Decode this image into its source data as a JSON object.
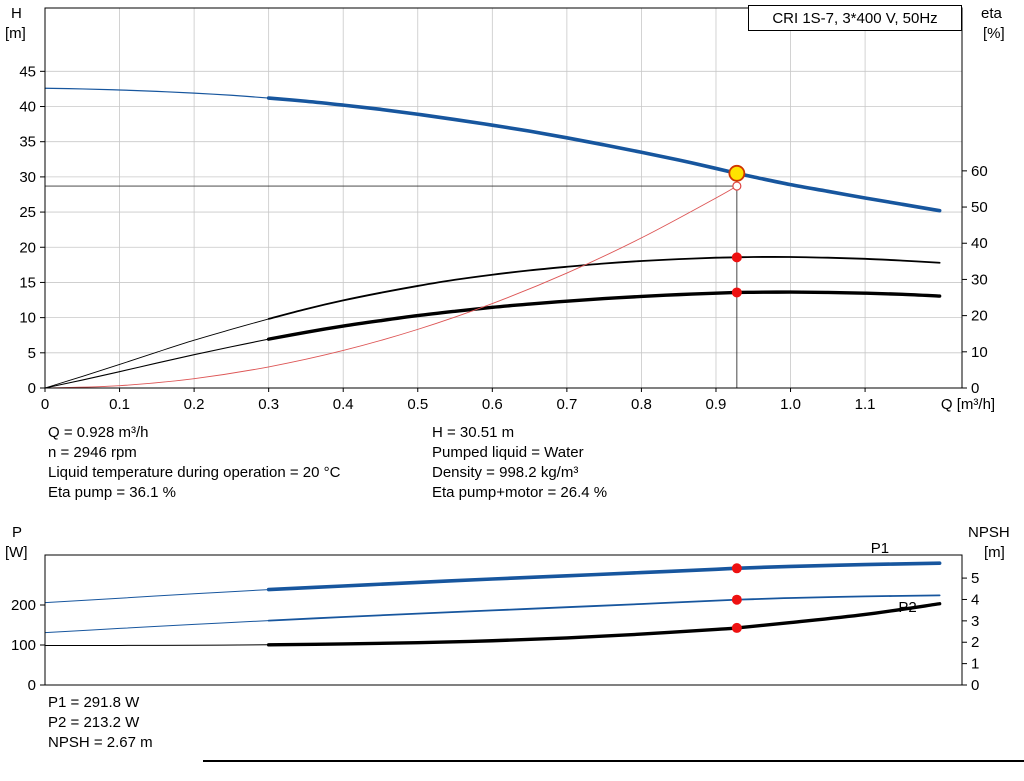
{
  "chart_data": [
    {
      "type": "line",
      "title": "CRI 1S-7, 3*400 V, 50Hz",
      "grid": true,
      "grid_color": "#c8c8c8",
      "x": {
        "label": "Q [m³/h]",
        "min": 0,
        "max": 1.23,
        "ticks": [
          [
            0,
            "0"
          ],
          [
            0.1,
            "0.1"
          ],
          [
            0.2,
            "0.2"
          ],
          [
            0.3,
            "0.3"
          ],
          [
            0.4,
            "0.4"
          ],
          [
            0.5,
            "0.5"
          ],
          [
            0.6,
            "0.6"
          ],
          [
            0.7,
            "0.7"
          ],
          [
            0.8,
            "0.8"
          ],
          [
            0.9,
            "0.9"
          ],
          [
            1.0,
            "1.0"
          ],
          [
            1.1,
            "1.1"
          ]
        ]
      },
      "y_left": {
        "name": "H",
        "unit": "[m]",
        "min": 0,
        "max": 54,
        "ticks": [
          [
            0,
            "0"
          ],
          [
            5,
            "5"
          ],
          [
            10,
            "10"
          ],
          [
            15,
            "15"
          ],
          [
            20,
            "20"
          ],
          [
            25,
            "25"
          ],
          [
            30,
            "30"
          ],
          [
            35,
            "35"
          ],
          [
            40,
            "40"
          ],
          [
            45,
            "45"
          ]
        ]
      },
      "y_right": {
        "name": "eta",
        "unit": "[%]",
        "min": 0,
        "max": 105,
        "ticks": [
          [
            0,
            "0"
          ],
          [
            10,
            "10"
          ],
          [
            20,
            "20"
          ],
          [
            30,
            "30"
          ],
          [
            40,
            "40"
          ],
          [
            50,
            "50"
          ],
          [
            60,
            "60"
          ]
        ]
      },
      "series": [
        {
          "name": "pump-curve",
          "axis": "left",
          "color": "#17569e",
          "split": 0.3,
          "w_thin": 1.2,
          "w_thick": 3.6,
          "points": [
            [
              0,
              42.6
            ],
            [
              0.05,
              42.5
            ],
            [
              0.1,
              42.35
            ],
            [
              0.15,
              42.15
            ],
            [
              0.2,
              41.9
            ],
            [
              0.25,
              41.6
            ],
            [
              0.3,
              41.2
            ],
            [
              0.35,
              40.75
            ],
            [
              0.4,
              40.2
            ],
            [
              0.45,
              39.6
            ],
            [
              0.5,
              38.9
            ],
            [
              0.55,
              38.15
            ],
            [
              0.6,
              37.35
            ],
            [
              0.65,
              36.5
            ],
            [
              0.7,
              35.55
            ],
            [
              0.75,
              34.55
            ],
            [
              0.8,
              33.5
            ],
            [
              0.85,
              32.4
            ],
            [
              0.9,
              31.2
            ],
            [
              0.928,
              30.51
            ],
            [
              0.95,
              30.0
            ],
            [
              1.0,
              28.9
            ],
            [
              1.05,
              27.95
            ],
            [
              1.1,
              27.0
            ],
            [
              1.15,
              26.1
            ],
            [
              1.2,
              25.2
            ]
          ]
        },
        {
          "name": "eta-pump-curve",
          "axis": "right",
          "color": "#000000",
          "split": 0.3,
          "w_thin": 0.9,
          "w_thick": 1.8,
          "points": [
            [
              0,
              0
            ],
            [
              0.05,
              3.2
            ],
            [
              0.1,
              6.5
            ],
            [
              0.15,
              9.9
            ],
            [
              0.2,
              13.2
            ],
            [
              0.25,
              16.2
            ],
            [
              0.3,
              19.1
            ],
            [
              0.35,
              21.8
            ],
            [
              0.4,
              24.2
            ],
            [
              0.45,
              26.3
            ],
            [
              0.5,
              28.2
            ],
            [
              0.55,
              29.9
            ],
            [
              0.6,
              31.3
            ],
            [
              0.65,
              32.5
            ],
            [
              0.7,
              33.5
            ],
            [
              0.75,
              34.4
            ],
            [
              0.8,
              35.1
            ],
            [
              0.85,
              35.6
            ],
            [
              0.9,
              36.0
            ],
            [
              0.928,
              36.1
            ],
            [
              0.95,
              36.2
            ],
            [
              1.0,
              36.2
            ],
            [
              1.05,
              36.0
            ],
            [
              1.1,
              35.7
            ],
            [
              1.15,
              35.2
            ],
            [
              1.2,
              34.6
            ]
          ]
        },
        {
          "name": "eta-pump-motor-curve",
          "axis": "right",
          "color": "#000000",
          "split": 0.3,
          "w_thin": 1.1,
          "w_thick": 3.4,
          "points": [
            [
              0,
              0
            ],
            [
              0.05,
              2.2
            ],
            [
              0.1,
              4.5
            ],
            [
              0.15,
              6.9
            ],
            [
              0.2,
              9.2
            ],
            [
              0.25,
              11.4
            ],
            [
              0.3,
              13.5
            ],
            [
              0.35,
              15.4
            ],
            [
              0.4,
              17.1
            ],
            [
              0.45,
              18.6
            ],
            [
              0.5,
              20.0
            ],
            [
              0.55,
              21.2
            ],
            [
              0.6,
              22.3
            ],
            [
              0.65,
              23.2
            ],
            [
              0.7,
              24.0
            ],
            [
              0.75,
              24.7
            ],
            [
              0.8,
              25.3
            ],
            [
              0.85,
              25.8
            ],
            [
              0.9,
              26.2
            ],
            [
              0.928,
              26.4
            ],
            [
              0.95,
              26.45
            ],
            [
              1.0,
              26.5
            ],
            [
              1.05,
              26.4
            ],
            [
              1.1,
              26.2
            ],
            [
              1.15,
              25.9
            ],
            [
              1.2,
              25.4
            ]
          ]
        },
        {
          "name": "system-curve",
          "axis": "left",
          "color": "#dd5555",
          "split": null,
          "w_thin": 0.9,
          "w_thick": 0.9,
          "points": [
            [
              0,
              0
            ],
            [
              0.1,
              0.33
            ],
            [
              0.2,
              1.33
            ],
            [
              0.3,
              3.0
            ],
            [
              0.4,
              5.33
            ],
            [
              0.5,
              8.33
            ],
            [
              0.6,
              12.0
            ],
            [
              0.7,
              16.33
            ],
            [
              0.8,
              21.33
            ],
            [
              0.9,
              27.0
            ],
            [
              0.928,
              28.7
            ]
          ]
        }
      ],
      "markers": [
        {
          "type": "vline",
          "name": "duty-flow-line",
          "q": 0.928,
          "value": 30.51,
          "axis": "left",
          "color": "#333333",
          "width": 0.9
        },
        {
          "type": "hline",
          "name": "duty-head-line",
          "q": 0.928,
          "value": 28.7,
          "axis": "left",
          "color": "#333333",
          "width": 0.9
        },
        {
          "type": "dot",
          "name": "eta-pump-duty-dot",
          "q": 0.928,
          "value": 36.1,
          "axis": "right",
          "r": 5,
          "fill": "#ee1111"
        },
        {
          "type": "dot",
          "name": "eta-pump-motor-duty-dot",
          "q": 0.928,
          "value": 26.4,
          "axis": "right",
          "r": 5,
          "fill": "#ee1111"
        },
        {
          "type": "dot",
          "name": "system-curve-duty-ring",
          "q": 0.928,
          "value": 28.7,
          "axis": "left",
          "r": 4,
          "fill": "#ffffff",
          "stroke": "#dd4444",
          "stroke_width": 1.2
        },
        {
          "type": "dot",
          "name": "duty-point",
          "q": 0.928,
          "value": 30.51,
          "axis": "left",
          "r": 7.5,
          "fill": "#ffe300",
          "stroke": "#d03600",
          "stroke_width": 1.8
        }
      ],
      "duty_point": {
        "q": 0.928,
        "h": 30.51,
        "eta_pump": 36.1,
        "eta_pump_motor": 26.4
      }
    },
    {
      "type": "line",
      "title": "",
      "grid": false,
      "grid_color": "#c8c8c8",
      "x": {
        "label": "",
        "min": 0,
        "max": 1.23,
        "ticks": []
      },
      "y_left": {
        "name": "P",
        "unit": "[W]",
        "min": 0,
        "max": 325,
        "ticks": [
          [
            0,
            "0"
          ],
          [
            100,
            "100"
          ],
          [
            200,
            "200"
          ]
        ]
      },
      "y_right": {
        "name": "NPSH",
        "unit": "[m]",
        "min": 0,
        "max": 6.08,
        "ticks": [
          [
            0,
            "0"
          ],
          [
            1,
            "1"
          ],
          [
            2,
            "2"
          ],
          [
            3,
            "3"
          ],
          [
            4,
            "4"
          ],
          [
            5,
            "5"
          ]
        ]
      },
      "series": [
        {
          "name": "p1-curve",
          "axis": "left",
          "color": "#17569e",
          "split": 0.3,
          "w_thin": 1.0,
          "w_thick": 3.6,
          "points": [
            [
              0,
              206
            ],
            [
              0.1,
              217
            ],
            [
              0.2,
              228
            ],
            [
              0.3,
              238.5
            ],
            [
              0.4,
              247.5
            ],
            [
              0.5,
              256.5
            ],
            [
              0.6,
              265
            ],
            [
              0.7,
              273
            ],
            [
              0.8,
              281
            ],
            [
              0.9,
              289.3
            ],
            [
              0.928,
              291.8
            ],
            [
              0.95,
              293.4
            ],
            [
              1.0,
              296.5
            ],
            [
              1.1,
              301
            ],
            [
              1.2,
              304.5
            ]
          ]
        },
        {
          "name": "p2-curve",
          "axis": "left",
          "color": "#17569e",
          "split": 0.3,
          "w_thin": 1.0,
          "w_thick": 1.8,
          "points": [
            [
              0,
              131
            ],
            [
              0.1,
              141.5
            ],
            [
              0.2,
              151.5
            ],
            [
              0.3,
              161
            ],
            [
              0.4,
              170
            ],
            [
              0.5,
              178.5
            ],
            [
              0.6,
              186.5
            ],
            [
              0.7,
              194.5
            ],
            [
              0.8,
              202.5
            ],
            [
              0.9,
              211
            ],
            [
              0.928,
              213.2
            ],
            [
              0.95,
              214.5
            ],
            [
              1.0,
              217.5
            ],
            [
              1.1,
              221.5
            ],
            [
              1.2,
              224
            ]
          ]
        },
        {
          "name": "npsh-curve",
          "axis": "right",
          "color": "#000000",
          "split": 0.3,
          "w_thin": 1.0,
          "w_thick": 3.4,
          "points": [
            [
              0,
              1.85
            ],
            [
              0.1,
              1.85
            ],
            [
              0.2,
              1.86
            ],
            [
              0.3,
              1.88
            ],
            [
              0.4,
              1.92
            ],
            [
              0.5,
              1.98
            ],
            [
              0.6,
              2.07
            ],
            [
              0.7,
              2.2
            ],
            [
              0.8,
              2.38
            ],
            [
              0.9,
              2.6
            ],
            [
              0.928,
              2.67
            ],
            [
              1.0,
              2.92
            ],
            [
              1.1,
              3.3
            ],
            [
              1.2,
              3.8
            ]
          ]
        }
      ],
      "markers": [
        {
          "type": "dot",
          "name": "p1-duty-dot",
          "q": 0.928,
          "value": 291.8,
          "axis": "left",
          "r": 5,
          "fill": "#ee1111"
        },
        {
          "type": "dot",
          "name": "p2-duty-dot",
          "q": 0.928,
          "value": 213.2,
          "axis": "left",
          "r": 5,
          "fill": "#ee1111"
        },
        {
          "type": "dot",
          "name": "npsh-duty-dot",
          "q": 0.928,
          "value": 2.67,
          "axis": "right",
          "r": 5,
          "fill": "#ee1111"
        },
        {
          "type": "label",
          "name": "p1-curve-label",
          "text": "P1",
          "q": 1.12,
          "value": 330,
          "axis": "left",
          "color": "#17569e"
        },
        {
          "type": "label",
          "name": "p2-curve-label",
          "text": "P2",
          "q": 1.157,
          "value": 182,
          "axis": "left",
          "color": "#17569e"
        }
      ],
      "duty_point": {
        "q": 0.928,
        "p1_w": 291.8,
        "p2_w": 213.2,
        "npsh_m": 2.67
      }
    }
  ],
  "duty_results": {
    "col_left": [
      "Q = 0.928 m³/h",
      "n = 2946 rpm",
      "Liquid temperature during operation = 20 °C",
      "Eta pump = 36.1 %"
    ],
    "col_right": [
      "H = 30.51 m",
      "Pumped liquid = Water",
      "Density = 998.2 kg/m³",
      "Eta pump+motor = 26.4 %"
    ]
  },
  "power_results": [
    "P1 = 291.8 W",
    "P2 = 213.2 W",
    "NPSH = 2.67 m"
  ],
  "colors": {
    "curve_blue": "#17569e",
    "curve_black": "#000000",
    "system_red": "#dd5555",
    "duty_dot_red": "#ee1111",
    "duty_point_fill": "#ffe300",
    "duty_point_stroke": "#d03600",
    "grid": "#c8c8c8"
  }
}
